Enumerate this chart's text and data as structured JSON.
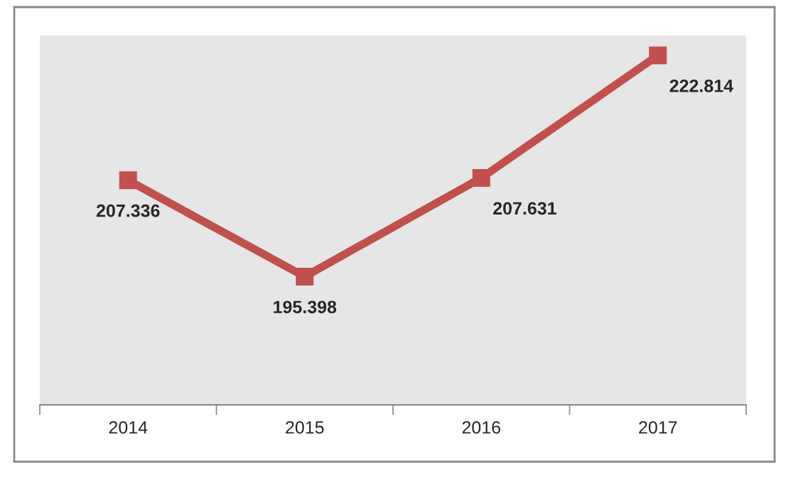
{
  "chart_data": {
    "type": "line",
    "categories": [
      "2014",
      "2015",
      "2016",
      "2017"
    ],
    "series": [
      {
        "color": "#c0504d",
        "values": [
          207.336,
          195.398,
          207.631,
          222.814
        ]
      }
    ],
    "data_labels": true,
    "marker": "square",
    "line_style": "solid",
    "grid": false,
    "legend": false,
    "tick_labels": "x"
  }
}
